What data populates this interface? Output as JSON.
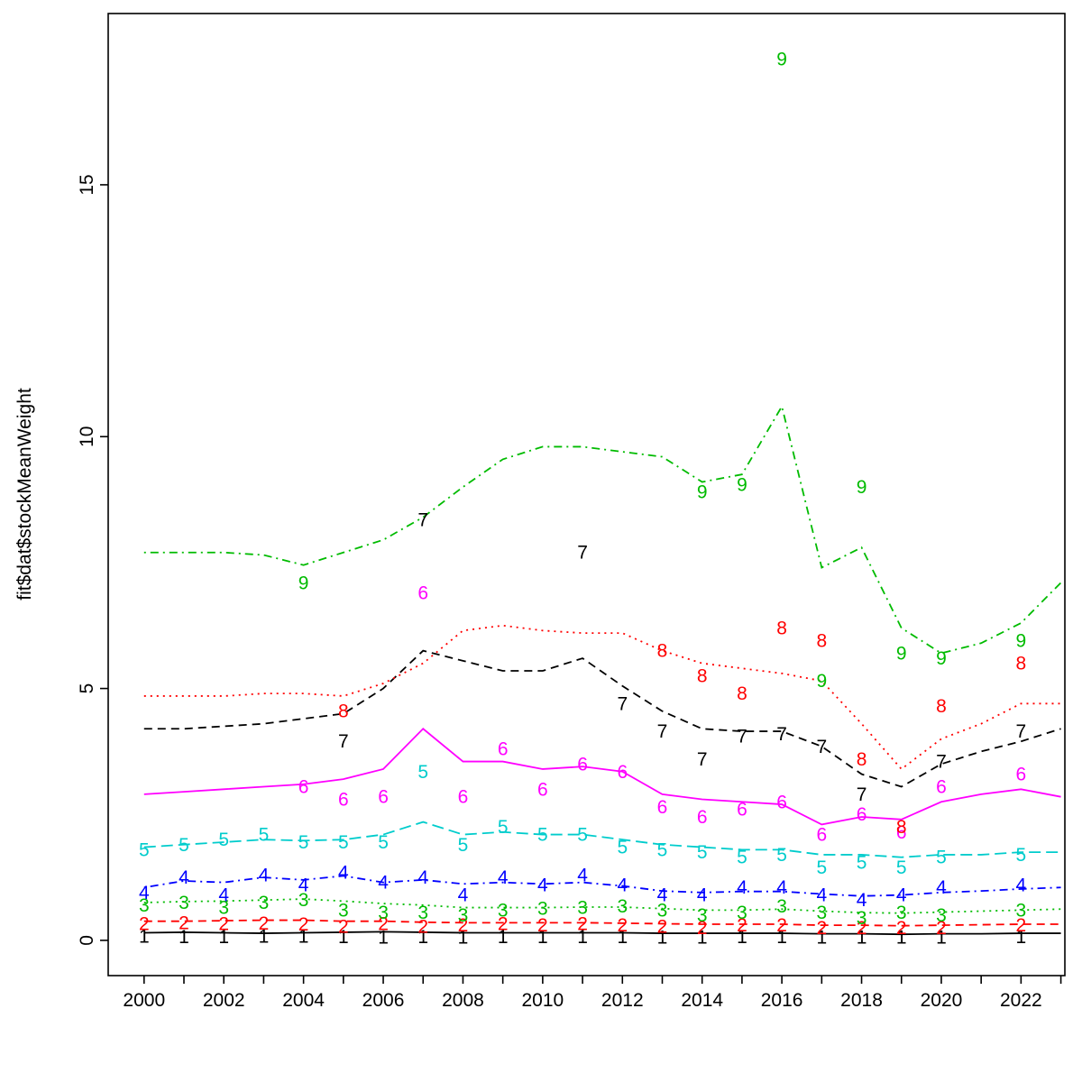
{
  "chart_data": {
    "type": "line",
    "title": "",
    "xlabel": "",
    "ylabel": "fit$dat$stockMeanWeight",
    "grid": false,
    "legend_position": "none",
    "xlim": [
      1999.1,
      2023.1
    ],
    "ylim": [
      -0.7,
      18.4
    ],
    "y_ticks": [
      0,
      5,
      10,
      15
    ],
    "x_ticks": [
      2000,
      2001,
      2002,
      2003,
      2004,
      2005,
      2006,
      2007,
      2008,
      2009,
      2010,
      2011,
      2012,
      2013,
      2014,
      2015,
      2016,
      2017,
      2018,
      2019,
      2020,
      2021,
      2022,
      2023
    ],
    "x_tick_labels": [
      2000,
      2002,
      2004,
      2006,
      2008,
      2010,
      2012,
      2014,
      2016,
      2018,
      2020,
      2022
    ],
    "line_years": [
      2000,
      2001,
      2002,
      2003,
      2004,
      2005,
      2006,
      2007,
      2008,
      2009,
      2010,
      2011,
      2012,
      2013,
      2014,
      2015,
      2016,
      2017,
      2018,
      2019,
      2020,
      2021,
      2022,
      2023
    ],
    "series": [
      {
        "name": "age 1",
        "label": "1",
        "color": "#000000",
        "linetype": "solid",
        "line_values": [
          0.15,
          0.16,
          0.15,
          0.14,
          0.15,
          0.16,
          0.17,
          0.16,
          0.15,
          0.15,
          0.15,
          0.15,
          0.15,
          0.14,
          0.14,
          0.14,
          0.14,
          0.13,
          0.13,
          0.12,
          0.13,
          0.13,
          0.14,
          0.14
        ],
        "points": [
          [
            2000,
            0.08
          ],
          [
            2001,
            0.07
          ],
          [
            2002,
            0.07
          ],
          [
            2003,
            0.08
          ],
          [
            2004,
            0.08
          ],
          [
            2005,
            0.07
          ],
          [
            2006,
            0.06
          ],
          [
            2007,
            0.07
          ],
          [
            2008,
            0.06
          ],
          [
            2009,
            0.07
          ],
          [
            2010,
            0.07
          ],
          [
            2011,
            0.07
          ],
          [
            2012,
            0.07
          ],
          [
            2013,
            0.06
          ],
          [
            2014,
            0.06
          ],
          [
            2015,
            0.07
          ],
          [
            2016,
            0.07
          ],
          [
            2017,
            0.06
          ],
          [
            2018,
            0.06
          ],
          [
            2019,
            0.06
          ],
          [
            2020,
            0.06
          ],
          [
            2022,
            0.07
          ]
        ]
      },
      {
        "name": "age 2",
        "label": "2",
        "color": "#ff0000",
        "linetype": "dashed",
        "line_values": [
          0.38,
          0.38,
          0.39,
          0.4,
          0.4,
          0.38,
          0.38,
          0.36,
          0.35,
          0.35,
          0.35,
          0.35,
          0.34,
          0.33,
          0.32,
          0.32,
          0.32,
          0.3,
          0.3,
          0.29,
          0.3,
          0.31,
          0.32,
          0.32
        ],
        "points": [
          [
            2000,
            0.33
          ],
          [
            2001,
            0.35
          ],
          [
            2002,
            0.33
          ],
          [
            2003,
            0.34
          ],
          [
            2004,
            0.32
          ],
          [
            2005,
            0.28
          ],
          [
            2006,
            0.33
          ],
          [
            2007,
            0.28
          ],
          [
            2008,
            0.3
          ],
          [
            2009,
            0.33
          ],
          [
            2010,
            0.3
          ],
          [
            2011,
            0.33
          ],
          [
            2012,
            0.3
          ],
          [
            2013,
            0.28
          ],
          [
            2014,
            0.25
          ],
          [
            2015,
            0.3
          ],
          [
            2016,
            0.3
          ],
          [
            2017,
            0.25
          ],
          [
            2018,
            0.25
          ],
          [
            2019,
            0.25
          ],
          [
            2020,
            0.25
          ],
          [
            2022,
            0.3
          ]
        ]
      },
      {
        "name": "age 3",
        "label": "3",
        "color": "#00bb00",
        "linetype": "dotted",
        "line_values": [
          0.75,
          0.77,
          0.78,
          0.8,
          0.82,
          0.78,
          0.73,
          0.7,
          0.65,
          0.65,
          0.65,
          0.66,
          0.66,
          0.63,
          0.6,
          0.6,
          0.62,
          0.58,
          0.55,
          0.54,
          0.56,
          0.58,
          0.6,
          0.62
        ],
        "points": [
          [
            2000,
            0.7
          ],
          [
            2001,
            0.75
          ],
          [
            2002,
            0.65
          ],
          [
            2003,
            0.75
          ],
          [
            2004,
            0.8
          ],
          [
            2005,
            0.6
          ],
          [
            2006,
            0.55
          ],
          [
            2007,
            0.55
          ],
          [
            2008,
            0.5
          ],
          [
            2009,
            0.6
          ],
          [
            2010,
            0.63
          ],
          [
            2011,
            0.65
          ],
          [
            2012,
            0.68
          ],
          [
            2013,
            0.6
          ],
          [
            2014,
            0.5
          ],
          [
            2015,
            0.55
          ],
          [
            2016,
            0.68
          ],
          [
            2017,
            0.55
          ],
          [
            2018,
            0.45
          ],
          [
            2019,
            0.55
          ],
          [
            2020,
            0.5
          ],
          [
            2022,
            0.6
          ]
        ]
      },
      {
        "name": "age 4",
        "label": "4",
        "color": "#0000ff",
        "linetype": "dotdash",
        "line_values": [
          1.05,
          1.18,
          1.15,
          1.25,
          1.2,
          1.28,
          1.15,
          1.2,
          1.12,
          1.15,
          1.12,
          1.15,
          1.08,
          0.98,
          0.95,
          0.97,
          0.97,
          0.92,
          0.88,
          0.9,
          0.95,
          0.98,
          1.02,
          1.05
        ],
        "points": [
          [
            2000,
            0.95
          ],
          [
            2001,
            1.25
          ],
          [
            2002,
            0.9
          ],
          [
            2003,
            1.3
          ],
          [
            2004,
            1.1
          ],
          [
            2005,
            1.35
          ],
          [
            2006,
            1.15
          ],
          [
            2007,
            1.25
          ],
          [
            2008,
            0.9
          ],
          [
            2009,
            1.25
          ],
          [
            2010,
            1.1
          ],
          [
            2011,
            1.3
          ],
          [
            2012,
            1.1
          ],
          [
            2013,
            0.9
          ],
          [
            2014,
            0.9
          ],
          [
            2015,
            1.05
          ],
          [
            2016,
            1.05
          ],
          [
            2017,
            0.9
          ],
          [
            2018,
            0.8
          ],
          [
            2019,
            0.9
          ],
          [
            2020,
            1.05
          ],
          [
            2022,
            1.1
          ]
        ]
      },
      {
        "name": "age 5",
        "label": "5",
        "color": "#00cccc",
        "linetype": "longdash",
        "line_values": [
          1.85,
          1.9,
          1.95,
          2.0,
          1.98,
          2.0,
          2.1,
          2.35,
          2.1,
          2.15,
          2.1,
          2.1,
          2.0,
          1.9,
          1.85,
          1.8,
          1.8,
          1.7,
          1.7,
          1.65,
          1.7,
          1.7,
          1.75,
          1.75
        ],
        "points": [
          [
            2000,
            1.8
          ],
          [
            2001,
            1.9
          ],
          [
            2002,
            2.0
          ],
          [
            2003,
            2.1
          ],
          [
            2004,
            1.95
          ],
          [
            2005,
            1.95
          ],
          [
            2006,
            1.95
          ],
          [
            2007,
            3.35
          ],
          [
            2008,
            1.9
          ],
          [
            2009,
            2.25
          ],
          [
            2010,
            2.1
          ],
          [
            2011,
            2.1
          ],
          [
            2012,
            1.85
          ],
          [
            2013,
            1.8
          ],
          [
            2014,
            1.75
          ],
          [
            2015,
            1.65
          ],
          [
            2016,
            1.7
          ],
          [
            2017,
            1.45
          ],
          [
            2018,
            1.55
          ],
          [
            2019,
            1.45
          ],
          [
            2020,
            1.65
          ],
          [
            2022,
            1.7
          ]
        ]
      },
      {
        "name": "age 6",
        "label": "6",
        "color": "#ff00ff",
        "linetype": "solid",
        "line_values": [
          2.9,
          2.95,
          3.0,
          3.05,
          3.1,
          3.2,
          3.4,
          4.2,
          3.55,
          3.55,
          3.4,
          3.45,
          3.35,
          2.9,
          2.8,
          2.75,
          2.7,
          2.3,
          2.45,
          2.4,
          2.75,
          2.9,
          3.0,
          2.85
        ],
        "points": [
          [
            2004,
            3.05
          ],
          [
            2005,
            2.8
          ],
          [
            2006,
            2.85
          ],
          [
            2007,
            6.9
          ],
          [
            2008,
            2.85
          ],
          [
            2009,
            3.8
          ],
          [
            2010,
            3.0
          ],
          [
            2011,
            3.5
          ],
          [
            2012,
            3.35
          ],
          [
            2013,
            2.65
          ],
          [
            2014,
            2.45
          ],
          [
            2015,
            2.6
          ],
          [
            2016,
            2.75
          ],
          [
            2017,
            2.1
          ],
          [
            2018,
            2.5
          ],
          [
            2019,
            2.15
          ],
          [
            2020,
            3.05
          ],
          [
            2022,
            3.3
          ]
        ]
      },
      {
        "name": "age 7",
        "label": "7",
        "color": "#000000",
        "linetype": "dashed",
        "line_values": [
          4.2,
          4.2,
          4.25,
          4.3,
          4.4,
          4.5,
          5.0,
          5.75,
          5.55,
          5.35,
          5.35,
          5.6,
          5.05,
          4.55,
          4.2,
          4.15,
          4.15,
          3.85,
          3.3,
          3.05,
          3.5,
          3.75,
          3.95,
          4.2
        ],
        "points": [
          [
            2005,
            3.95
          ],
          [
            2007,
            8.35
          ],
          [
            2011,
            7.7
          ],
          [
            2012,
            4.7
          ],
          [
            2013,
            4.15
          ],
          [
            2014,
            3.6
          ],
          [
            2015,
            4.05
          ],
          [
            2016,
            4.1
          ],
          [
            2017,
            3.85
          ],
          [
            2018,
            2.9
          ],
          [
            2020,
            3.55
          ],
          [
            2022,
            4.15
          ]
        ]
      },
      {
        "name": "age 8",
        "label": "8",
        "color": "#ff0000",
        "linetype": "dotted",
        "line_values": [
          4.85,
          4.85,
          4.85,
          4.9,
          4.9,
          4.85,
          5.1,
          5.5,
          6.15,
          6.25,
          6.15,
          6.1,
          6.1,
          5.75,
          5.5,
          5.4,
          5.3,
          5.15,
          4.3,
          3.4,
          4.0,
          4.3,
          4.7,
          4.7
        ],
        "points": [
          [
            2005,
            4.55
          ],
          [
            2013,
            5.75
          ],
          [
            2014,
            5.25
          ],
          [
            2015,
            4.9
          ],
          [
            2016,
            6.2
          ],
          [
            2017,
            5.95
          ],
          [
            2018,
            3.6
          ],
          [
            2019,
            2.25
          ],
          [
            2020,
            4.65
          ],
          [
            2022,
            5.5
          ]
        ]
      },
      {
        "name": "age 9",
        "label": "9",
        "color": "#00bb00",
        "linetype": "dotdash",
        "line_values": [
          7.7,
          7.7,
          7.7,
          7.65,
          7.45,
          7.7,
          7.95,
          8.4,
          9.0,
          9.55,
          9.8,
          9.8,
          9.7,
          9.6,
          9.1,
          9.25,
          10.6,
          7.4,
          7.8,
          6.2,
          5.7,
          5.9,
          6.3,
          7.1
        ],
        "points": [
          [
            2004,
            7.1
          ],
          [
            2014,
            8.9
          ],
          [
            2015,
            9.05
          ],
          [
            2016,
            17.5
          ],
          [
            2017,
            5.15
          ],
          [
            2018,
            9.0
          ],
          [
            2019,
            5.7
          ],
          [
            2020,
            5.6
          ],
          [
            2022,
            5.95
          ]
        ]
      }
    ]
  }
}
